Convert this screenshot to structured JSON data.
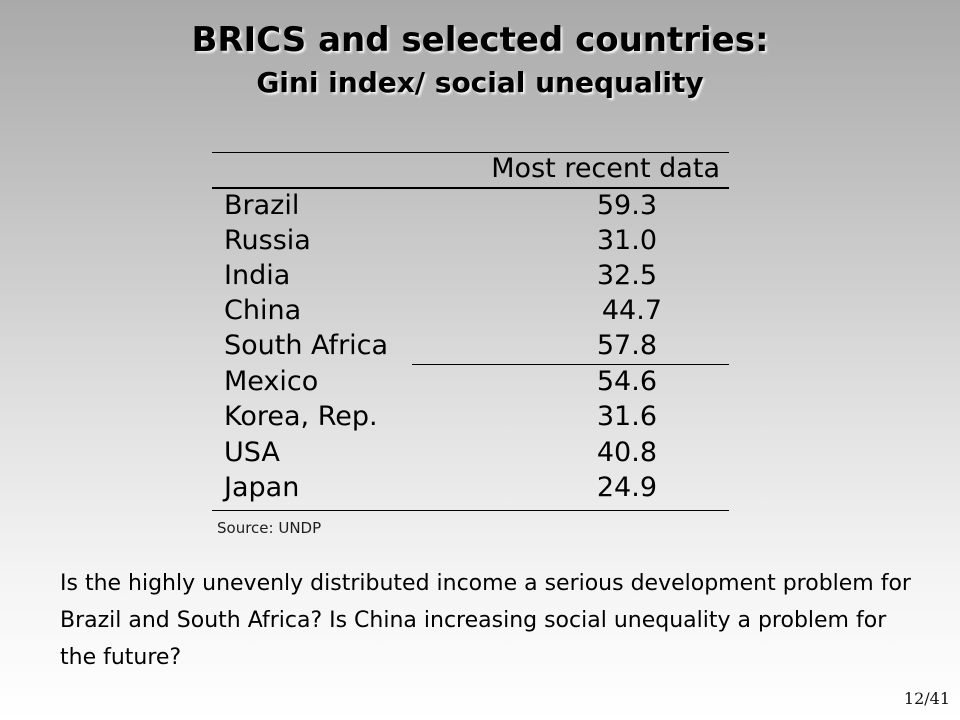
{
  "title": {
    "line1": "BRICS and selected countries:",
    "line2": "Gini index/ social unequality"
  },
  "table": {
    "column_header": "Most recent data",
    "rows": [
      {
        "country": "Brazil",
        "value": "59.3"
      },
      {
        "country": "Russia",
        "value": "31.0"
      },
      {
        "country": "India",
        "value": "32.5"
      },
      {
        "country": "China",
        "value": "44.7"
      },
      {
        "country": "South Africa",
        "value": "57.8"
      },
      {
        "country": "Mexico",
        "value": "54.6"
      },
      {
        "country": "Korea, Rep.",
        "value": "31.6"
      },
      {
        "country": "USA",
        "value": "40.8"
      },
      {
        "country": "Japan",
        "value": "24.9"
      }
    ]
  },
  "source": "Source: UNDP",
  "question": "Is the highly unevenly distributed income a serious development problem for Brazil and South Africa? Is China increasing social unequality a problem for the future?",
  "page_number": "12/41"
}
